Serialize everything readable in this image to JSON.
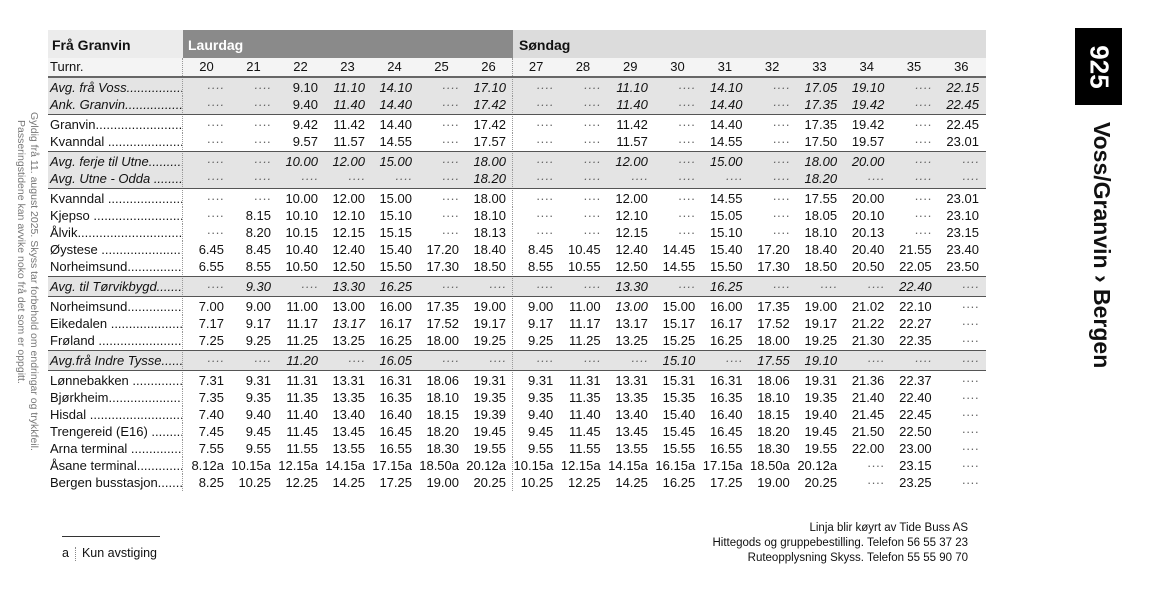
{
  "route_number": "925",
  "route_title": "Voss/Granvin › Bergen",
  "validity_note": [
    "Gyldig frå 11. august 2025. Skyss tar forbehold om endringar og trykkfeil.",
    "Passeringstidene kan avvike noko frå det som er oppgitt."
  ],
  "table": {
    "from_label": "Frå Granvin",
    "saturday_label": "Laurdag",
    "sunday_label": "Søndag",
    "turn_label": "Turnr.",
    "turns": [
      "20",
      "21",
      "22",
      "23",
      "24",
      "25",
      "26",
      "27",
      "28",
      "29",
      "30",
      "31",
      "32",
      "33",
      "34",
      "35",
      "36"
    ],
    "groups": [
      {
        "shaded": true,
        "rows": [
          {
            "label": "Avg. frå Voss........................",
            "italic": true,
            "upright_cols": [
              2
            ],
            "times": [
              "····",
              "····",
              "9.10",
              "11.10",
              "14.10",
              "····",
              "17.10",
              "····",
              "····",
              "11.10",
              "····",
              "14.10",
              "····",
              "17.05",
              "19.10",
              "····",
              "22.15"
            ]
          },
          {
            "label": "Ank. Granvin........................",
            "italic": true,
            "upright_cols": [
              2
            ],
            "times": [
              "····",
              "····",
              "9.40",
              "11.40",
              "14.40",
              "····",
              "17.42",
              "····",
              "····",
              "11.40",
              "····",
              "14.40",
              "····",
              "17.35",
              "19.42",
              "····",
              "22.45"
            ]
          }
        ]
      },
      {
        "shaded": false,
        "rows": [
          {
            "label": "Granvin...............................",
            "times": [
              "····",
              "····",
              "9.42",
              "11.42",
              "14.40",
              "····",
              "17.42",
              "····",
              "····",
              "11.42",
              "····",
              "14.40",
              "····",
              "17.35",
              "19.42",
              "····",
              "22.45"
            ]
          },
          {
            "label": "Kvanndal ............................",
            "times": [
              "····",
              "····",
              "9.57",
              "11.57",
              "14.55",
              "····",
              "17.57",
              "····",
              "····",
              "11.57",
              "····",
              "14.55",
              "····",
              "17.50",
              "19.57",
              "····",
              "23.01"
            ]
          }
        ]
      },
      {
        "shaded": true,
        "rows": [
          {
            "label": "Avg. ferje til Utne..................",
            "italic": true,
            "times": [
              "····",
              "····",
              "10.00",
              "12.00",
              "15.00",
              "····",
              "18.00",
              "····",
              "····",
              "12.00",
              "····",
              "15.00",
              "····",
              "18.00",
              "20.00",
              "····",
              "····"
            ]
          },
          {
            "label": "Avg. Utne - Odda ..................",
            "italic": true,
            "times": [
              "····",
              "····",
              "····",
              "····",
              "····",
              "····",
              "18.20",
              "····",
              "····",
              "····",
              "····",
              "····",
              "····",
              "18.20",
              "····",
              "····",
              "····"
            ]
          }
        ]
      },
      {
        "shaded": false,
        "rows": [
          {
            "label": "Kvanndal ............................",
            "times": [
              "····",
              "····",
              "10.00",
              "12.00",
              "15.00",
              "····",
              "18.00",
              "····",
              "····",
              "12.00",
              "····",
              "14.55",
              "····",
              "17.55",
              "20.00",
              "····",
              "23.01"
            ]
          },
          {
            "label": "Kjepso ...............................",
            "times": [
              "····",
              "8.15",
              "10.10",
              "12.10",
              "15.10",
              "····",
              "18.10",
              "····",
              "····",
              "12.10",
              "····",
              "15.05",
              "····",
              "18.05",
              "20.10",
              "····",
              "23.10"
            ]
          },
          {
            "label": "Ålvik...................................",
            "times": [
              "····",
              "8.20",
              "10.15",
              "12.15",
              "15.15",
              "····",
              "18.13",
              "····",
              "····",
              "12.15",
              "····",
              "15.10",
              "····",
              "18.10",
              "20.13",
              "····",
              "23.15"
            ]
          },
          {
            "label": "Øystese ..............................",
            "times": [
              "6.45",
              "8.45",
              "10.40",
              "12.40",
              "15.40",
              "17.20",
              "18.40",
              "8.45",
              "10.45",
              "12.40",
              "14.45",
              "15.40",
              "17.20",
              "18.40",
              "20.40",
              "21.55",
              "23.40"
            ]
          },
          {
            "label": "Norheimsund.....................",
            "times": [
              "6.55",
              "8.55",
              "10.50",
              "12.50",
              "15.50",
              "17.30",
              "18.50",
              "8.55",
              "10.55",
              "12.50",
              "14.55",
              "15.50",
              "17.30",
              "18.50",
              "20.50",
              "22.05",
              "23.50"
            ]
          }
        ]
      },
      {
        "shaded": true,
        "rows": [
          {
            "label": "Avg. til Tørvikbygd.............",
            "italic": true,
            "times": [
              "····",
              "9.30",
              "····",
              "13.30",
              "16.25",
              "····",
              "····",
              "····",
              "····",
              "13.30",
              "····",
              "16.25",
              "····",
              "····",
              "····",
              "22.40",
              "····"
            ]
          }
        ]
      },
      {
        "shaded": false,
        "rows": [
          {
            "label": "Norheimsund.....................",
            "italic_cols": [
              9
            ],
            "times": [
              "7.00",
              "9.00",
              "11.00",
              "13.00",
              "16.00",
              "17.35",
              "19.00",
              "9.00",
              "11.00",
              "13.00",
              "15.00",
              "16.00",
              "17.35",
              "19.00",
              "21.02",
              "22.10",
              "····"
            ]
          },
          {
            "label": "Eikedalen ...........................",
            "italic_cols": [
              3
            ],
            "times": [
              "7.17",
              "9.17",
              "11.17",
              "13.17",
              "16.17",
              "17.52",
              "19.17",
              "9.17",
              "11.17",
              "13.17",
              "15.17",
              "16.17",
              "17.52",
              "19.17",
              "21.22",
              "22.27",
              "····"
            ]
          },
          {
            "label": "Frøland ..............................",
            "times": [
              "7.25",
              "9.25",
              "11.25",
              "13.25",
              "16.25",
              "18.00",
              "19.25",
              "9.25",
              "11.25",
              "13.25",
              "15.25",
              "16.25",
              "18.00",
              "19.25",
              "21.30",
              "22.35",
              "····"
            ]
          }
        ]
      },
      {
        "shaded": true,
        "rows": [
          {
            "label": "Avg.frå Indre Tysse.............",
            "italic": true,
            "times": [
              "····",
              "····",
              "11.20",
              "····",
              "16.05",
              "····",
              "····",
              "····",
              "····",
              "····",
              "15.10",
              "····",
              "17.55",
              "19.10",
              "····",
              "····",
              "····"
            ]
          }
        ]
      },
      {
        "shaded": false,
        "last": true,
        "rows": [
          {
            "label": "Lønnebakken .....................",
            "times": [
              "7.31",
              "9.31",
              "11.31",
              "13.31",
              "16.31",
              "18.06",
              "19.31",
              "9.31",
              "11.31",
              "13.31",
              "15.31",
              "16.31",
              "18.06",
              "19.31",
              "21.36",
              "22.37",
              "····"
            ]
          },
          {
            "label": "Bjørkheim...........................",
            "times": [
              "7.35",
              "9.35",
              "11.35",
              "13.35",
              "16.35",
              "18.10",
              "19.35",
              "9.35",
              "11.35",
              "13.35",
              "15.35",
              "16.35",
              "18.10",
              "19.35",
              "21.40",
              "22.40",
              "····"
            ]
          },
          {
            "label": "Hisdal ..................................",
            "times": [
              "7.40",
              "9.40",
              "11.40",
              "13.40",
              "16.40",
              "18.15",
              "19.39",
              "9.40",
              "11.40",
              "13.40",
              "15.40",
              "16.40",
              "18.15",
              "19.40",
              "21.45",
              "22.45",
              "····"
            ]
          },
          {
            "label": "Trengereid (E16) ...............",
            "times": [
              "7.45",
              "9.45",
              "11.45",
              "13.45",
              "16.45",
              "18.20",
              "19.45",
              "9.45",
              "11.45",
              "13.45",
              "15.45",
              "16.45",
              "18.20",
              "19.45",
              "21.50",
              "22.50",
              "····"
            ]
          },
          {
            "label": "Arna terminal ....................",
            "times": [
              "7.55",
              "9.55",
              "11.55",
              "13.55",
              "16.55",
              "18.30",
              "19.55",
              "9.55",
              "11.55",
              "13.55",
              "15.55",
              "16.55",
              "18.30",
              "19.55",
              "22.00",
              "23.00",
              "····"
            ]
          },
          {
            "label": "Åsane terminal...................",
            "times": [
              "8.12a",
              "10.15a",
              "12.15a",
              "14.15a",
              "17.15a",
              "18.50a",
              "20.12a",
              "10.15a",
              "12.15a",
              "14.15a",
              "16.15a",
              "17.15a",
              "18.50a",
              "20.12a",
              "····",
              "23.15",
              "····"
            ]
          },
          {
            "label": "Bergen busstasjon...............",
            "times": [
              "8.25",
              "10.25",
              "12.25",
              "14.25",
              "17.25",
              "19.00",
              "20.25",
              "10.25",
              "12.25",
              "14.25",
              "16.25",
              "17.25",
              "19.00",
              "20.25",
              "····",
              "23.25",
              "····"
            ]
          }
        ]
      }
    ]
  },
  "footnote": {
    "mark": "a",
    "text": "Kun avstiging"
  },
  "info_lines": [
    "Linja blir køyrt av Tide Buss AS",
    "Hittegods og gruppebestilling. Telefon  56 55 37 23",
    "Ruteopplysning Skyss. Telefon 55 55 90 70"
  ]
}
